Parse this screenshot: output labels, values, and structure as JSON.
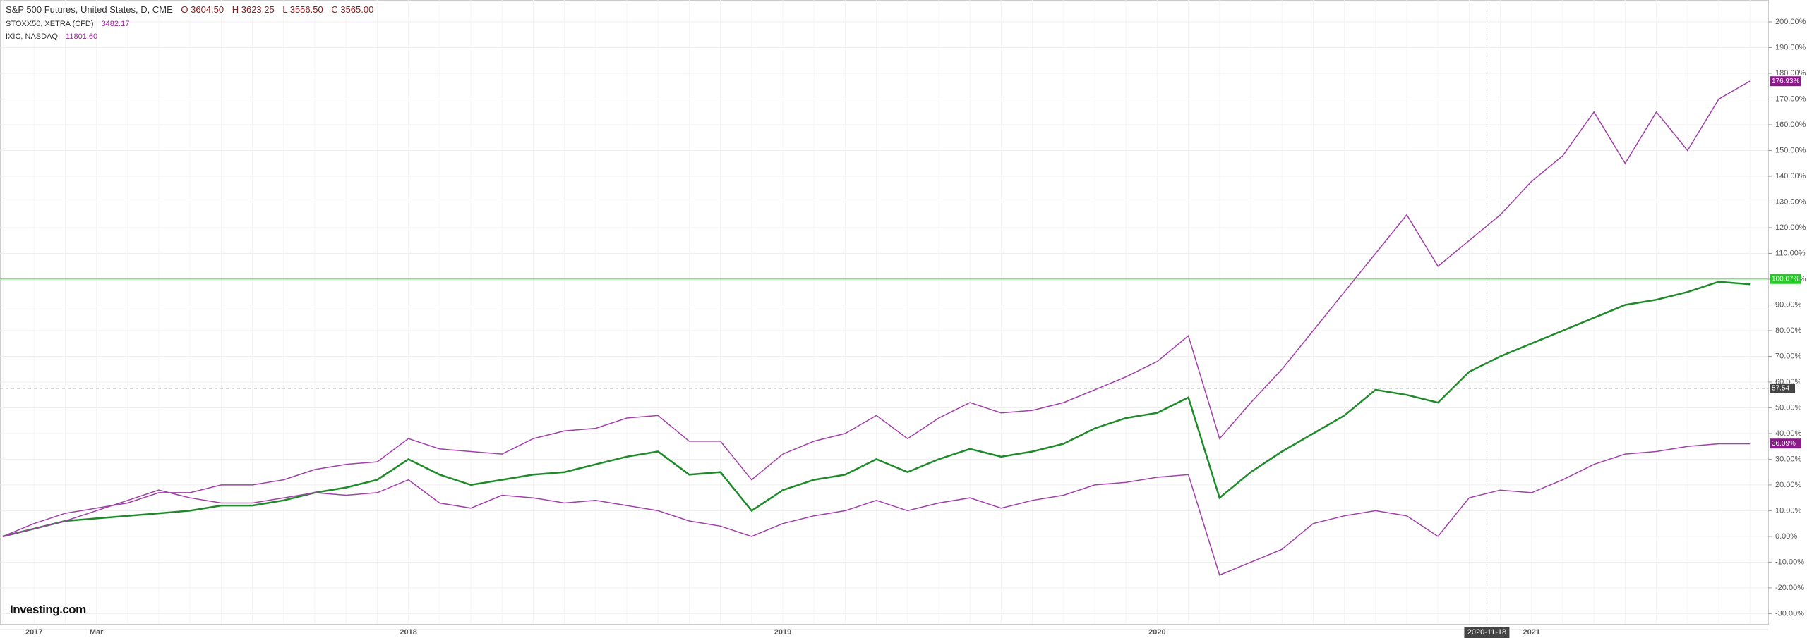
{
  "chart_data": {
    "type": "line",
    "categories": [
      null,
      "2017",
      null,
      "Mar",
      null,
      null,
      null,
      null,
      null,
      null,
      null,
      null,
      null,
      "2018",
      null,
      null,
      null,
      null,
      null,
      null,
      null,
      null,
      null,
      null,
      null,
      "2019",
      null,
      null,
      null,
      null,
      null,
      null,
      null,
      null,
      null,
      null,
      null,
      "2020",
      null,
      null,
      null,
      null,
      null,
      null,
      null,
      null,
      null,
      null,
      null,
      "2021",
      null,
      null,
      null,
      null,
      null,
      null,
      null
    ],
    "series": [
      {
        "name": "S&P 500 Futures, United States, D, CME",
        "color": "#1f8a2a",
        "header_values": [
          "O 3604.50",
          "H 3623.25",
          "L 3556.50",
          "C 3565.00"
        ],
        "values": [
          0,
          3,
          6,
          7,
          8,
          9,
          10,
          12,
          12,
          14,
          17,
          19,
          22,
          30,
          24,
          20,
          22,
          24,
          25,
          28,
          31,
          33,
          24,
          25,
          10,
          18,
          22,
          24,
          30,
          25,
          30,
          34,
          31,
          33,
          36,
          42,
          46,
          48,
          54,
          15,
          25,
          33,
          40,
          47,
          57,
          55,
          52,
          64,
          70,
          75,
          80,
          85,
          90,
          92,
          95,
          99,
          98
        ],
        "end_label": {
          "value": 100.07,
          "label": "100.07%"
        }
      },
      {
        "name": "STOXX50, XETRA (CFD)",
        "color": "#a040a8",
        "header_values": [
          "3482.17"
        ],
        "values": [
          0,
          3,
          6,
          10,
          14,
          18,
          15,
          13,
          13,
          15,
          17,
          16,
          17,
          22,
          13,
          11,
          16,
          15,
          13,
          14,
          12,
          10,
          6,
          4,
          0,
          5,
          8,
          10,
          14,
          10,
          13,
          15,
          11,
          14,
          16,
          20,
          21,
          23,
          24,
          -15,
          -10,
          -5,
          5,
          8,
          10,
          8,
          0,
          15,
          18,
          17,
          22,
          28,
          32,
          33,
          35,
          36,
          36
        ],
        "end_label": {
          "value": 36.09,
          "label": "36.09%"
        }
      },
      {
        "name": "IXIC, NASDAQ",
        "color": "#a040a8",
        "header_values": [
          "11801.60"
        ],
        "values": [
          0,
          5,
          9,
          11,
          13,
          17,
          17,
          20,
          20,
          22,
          26,
          28,
          29,
          38,
          34,
          33,
          32,
          38,
          41,
          42,
          46,
          47,
          37,
          37,
          22,
          32,
          37,
          40,
          47,
          38,
          46,
          52,
          48,
          49,
          52,
          57,
          62,
          68,
          78,
          38,
          52,
          65,
          80,
          95,
          110,
          125,
          105,
          115,
          125,
          138,
          148,
          165,
          145,
          165,
          150,
          170,
          177
        ],
        "end_label": {
          "value": 176.93,
          "label": "176.93%"
        }
      }
    ],
    "ylim": [
      -34,
      208.5
    ],
    "yticks": [
      {
        "value": -30,
        "label": "-30.00%"
      },
      {
        "value": -20,
        "label": "-20.00%"
      },
      {
        "value": -10,
        "label": "-10.00%"
      },
      {
        "value": 0,
        "label": "0.00%"
      },
      {
        "value": 10,
        "label": "10.00%"
      },
      {
        "value": 20,
        "label": "20.00%"
      },
      {
        "value": 30,
        "label": "30.00%"
      },
      {
        "value": 40,
        "label": "40.00%"
      },
      {
        "value": 50,
        "label": "50.00%"
      },
      {
        "value": 60,
        "label": "60.00%"
      },
      {
        "value": 70,
        "label": "70.00%"
      },
      {
        "value": 80,
        "label": "80.00%"
      },
      {
        "value": 90,
        "label": "90.00%"
      },
      {
        "value": 100,
        "label": "100.00%"
      },
      {
        "value": 110,
        "label": "110.00%"
      },
      {
        "value": 120,
        "label": "120.00%"
      },
      {
        "value": 130,
        "label": "130.00%"
      },
      {
        "value": 140,
        "label": "140.00%"
      },
      {
        "value": 150,
        "label": "150.00%"
      },
      {
        "value": 160,
        "label": "160.00%"
      },
      {
        "value": 170,
        "label": "170.00%"
      },
      {
        "value": 180,
        "label": "180.00%"
      },
      {
        "value": 190,
        "label": "190.00%"
      },
      {
        "value": 200,
        "label": "200.00%"
      }
    ],
    "grid": true,
    "crosshair": {
      "x_label": "2020-11-18",
      "y_value": 57.54,
      "y_label": "57.54"
    },
    "logo": "Investing.com"
  }
}
